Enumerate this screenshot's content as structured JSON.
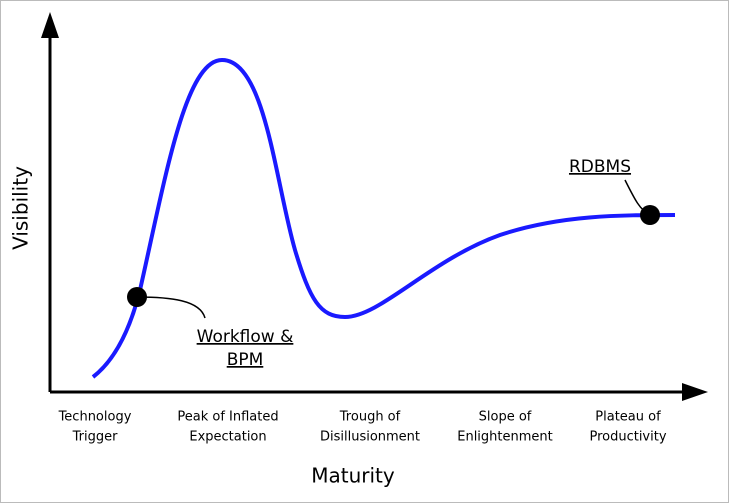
{
  "axes": {
    "x_label": "Maturity",
    "y_label": "Visibility"
  },
  "phases": [
    {
      "lines": [
        "Technology",
        "Trigger"
      ]
    },
    {
      "lines": [
        "Peak of Inflated",
        "Expectation"
      ]
    },
    {
      "lines": [
        "Trough of",
        "Disillusionment"
      ]
    },
    {
      "lines": [
        "Slope of",
        "Enlightenment"
      ]
    },
    {
      "lines": [
        "Plateau of",
        "Productivity"
      ]
    }
  ],
  "annotations": [
    {
      "lines": [
        "Workflow &",
        "BPM"
      ]
    },
    {
      "lines": [
        "RDBMS"
      ]
    }
  ]
}
